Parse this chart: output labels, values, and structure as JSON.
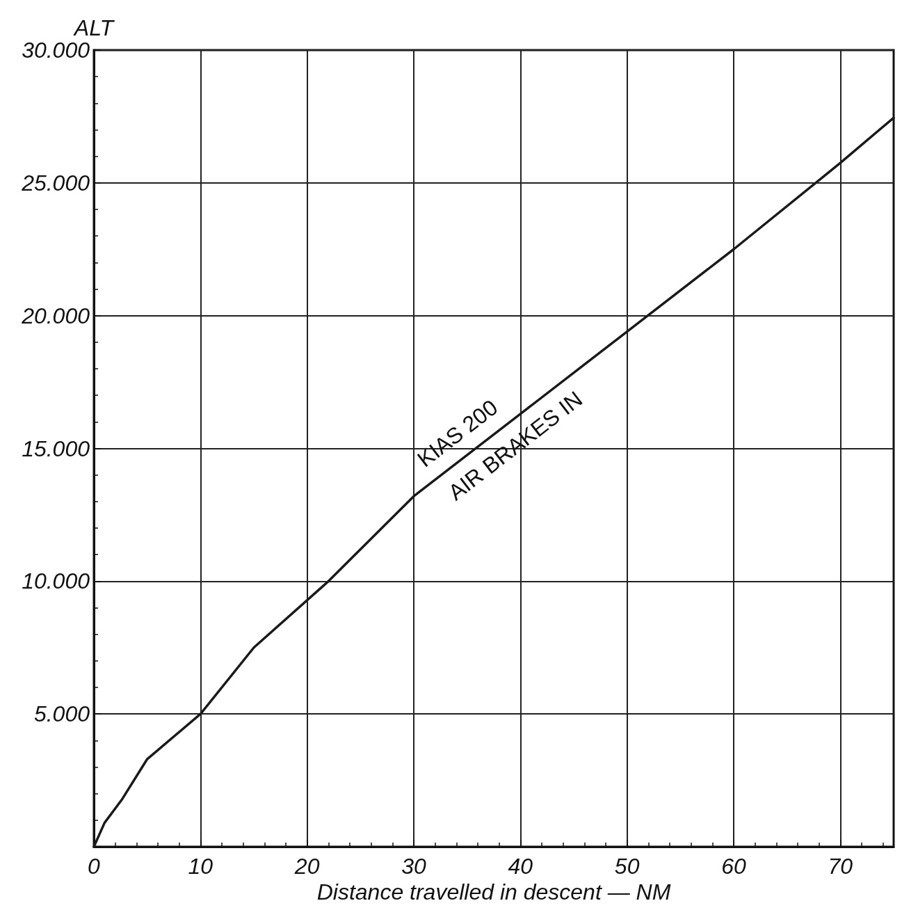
{
  "chart_data": {
    "type": "line",
    "xlabel": "Distance travelled in descent — NM",
    "ylabel": "ALT",
    "x": [
      0,
      1,
      2.6,
      5,
      10,
      15,
      22,
      25,
      30,
      40,
      50,
      60,
      70,
      75
    ],
    "series": [
      {
        "color": "#1a1a1a",
        "values": [
          0,
          900,
          1760,
          3300,
          5000,
          7500,
          10000,
          11200,
          13200,
          16300,
          19400,
          22500,
          25750,
          27450
        ]
      }
    ],
    "xlim": [
      0,
      75
    ],
    "xticks": [
      0,
      10,
      20,
      30,
      40,
      50,
      60,
      70
    ],
    "ylim": [
      0,
      30000
    ],
    "yticks": [
      {
        "value": 0,
        "label": null
      },
      {
        "value": 5000,
        "label": "5.000"
      },
      {
        "value": 10000,
        "label": "10.000"
      },
      {
        "value": 15000,
        "label": "15.000"
      },
      {
        "value": 20000,
        "label": "20.000"
      },
      {
        "value": 25000,
        "label": "25.000"
      },
      {
        "value": 30000,
        "label": "30.000"
      }
    ],
    "annotations": [
      "KIAS 200",
      "AIR BRAKES IN"
    ],
    "grid": true,
    "marker": "none",
    "line_style": "solid"
  }
}
